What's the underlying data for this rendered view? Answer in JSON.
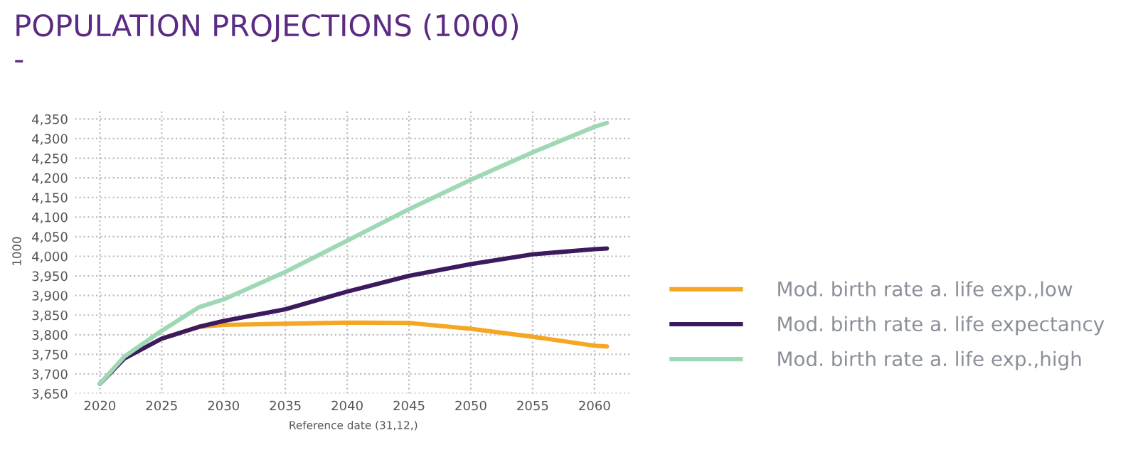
{
  "chart_data": {
    "type": "line",
    "title": "POPULATION PROJECTIONS (1000)\n-",
    "xlabel": "Reference date (31,12,)",
    "ylabel": "1000",
    "x": [
      2020,
      2022,
      2025,
      2028,
      2030,
      2035,
      2040,
      2045,
      2050,
      2055,
      2060,
      2061
    ],
    "series": [
      {
        "name": "Mod. birth rate a. life exp.,low",
        "color": "#f5a623",
        "values": [
          null,
          null,
          3790,
          3820,
          3825,
          3828,
          3831,
          3830,
          3815,
          3795,
          3772,
          3770
        ]
      },
      {
        "name": "Mod. birth rate a. life expectancy",
        "color": "#3d1a5e",
        "values": [
          3675,
          3740,
          3790,
          3820,
          3835,
          3865,
          3910,
          3950,
          3980,
          4005,
          4018,
          4020
        ]
      },
      {
        "name": "Mod. birth rate a. life exp.,high",
        "color": "#9fd8b4",
        "values": [
          3675,
          3745,
          3810,
          3870,
          3890,
          3960,
          4040,
          4120,
          4195,
          4265,
          4330,
          4340
        ]
      }
    ],
    "xlim": [
      2018,
      2063
    ],
    "ylim": [
      3650,
      4375
    ],
    "xticks": [
      2020,
      2025,
      2030,
      2035,
      2040,
      2045,
      2050,
      2055,
      2060
    ],
    "yticks": [
      {
        "value": 3650,
        "label": "3,650"
      },
      {
        "value": 3700,
        "label": "3,700"
      },
      {
        "value": 3750,
        "label": "3,750"
      },
      {
        "value": 3800,
        "label": "3,800"
      },
      {
        "value": 3850,
        "label": "3,850"
      },
      {
        "value": 3900,
        "label": "3,900"
      },
      {
        "value": 3950,
        "label": "3,950"
      },
      {
        "value": 4000,
        "label": "4,000"
      },
      {
        "value": 4050,
        "label": "4,050"
      },
      {
        "value": 4100,
        "label": "4,100"
      },
      {
        "value": 4150,
        "label": "4,150"
      },
      {
        "value": 4200,
        "label": "4,200"
      },
      {
        "value": 4250,
        "label": "4,250"
      },
      {
        "value": 4300,
        "label": "4,300"
      },
      {
        "value": 4350,
        "label": "4,350"
      }
    ],
    "grid": true,
    "legend": "right",
    "marker": "none",
    "line_style": "solid"
  }
}
